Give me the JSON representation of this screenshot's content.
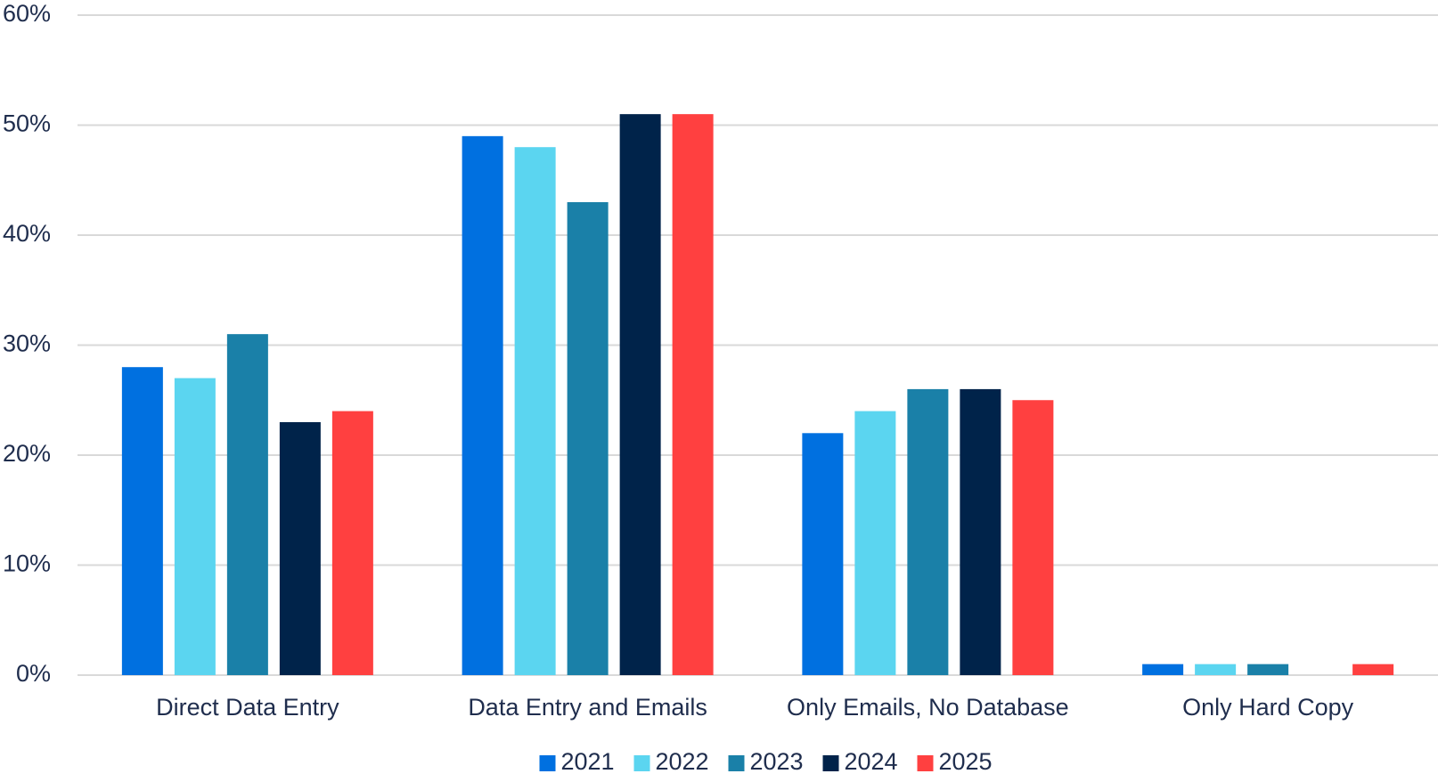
{
  "chart_data": {
    "type": "bar",
    "categories": [
      "Direct Data Entry",
      "Data Entry and Emails",
      "Only Emails, No Database",
      "Only Hard Copy"
    ],
    "series": [
      {
        "name": "2021",
        "color": "#0070e0",
        "values": [
          28,
          49,
          22,
          1
        ]
      },
      {
        "name": "2022",
        "color": "#5bd5f0",
        "values": [
          27,
          48,
          24,
          1
        ]
      },
      {
        "name": "2023",
        "color": "#1a80a8",
        "values": [
          31,
          43,
          26,
          1
        ]
      },
      {
        "name": "2024",
        "color": "#00234a",
        "values": [
          23,
          51,
          26,
          0
        ]
      },
      {
        "name": "2025",
        "color": "#ff4040",
        "values": [
          24,
          51,
          25,
          1
        ]
      }
    ],
    "ylim": [
      0,
      60
    ],
    "yticks": [
      {
        "value": 0,
        "label": "0%"
      },
      {
        "value": 10,
        "label": "10%"
      },
      {
        "value": 20,
        "label": "20%"
      },
      {
        "value": 30,
        "label": "30%"
      },
      {
        "value": 40,
        "label": "40%"
      },
      {
        "value": 50,
        "label": "50%"
      },
      {
        "value": 60,
        "label": "60%"
      }
    ],
    "grid": true,
    "legend": "bottom"
  }
}
